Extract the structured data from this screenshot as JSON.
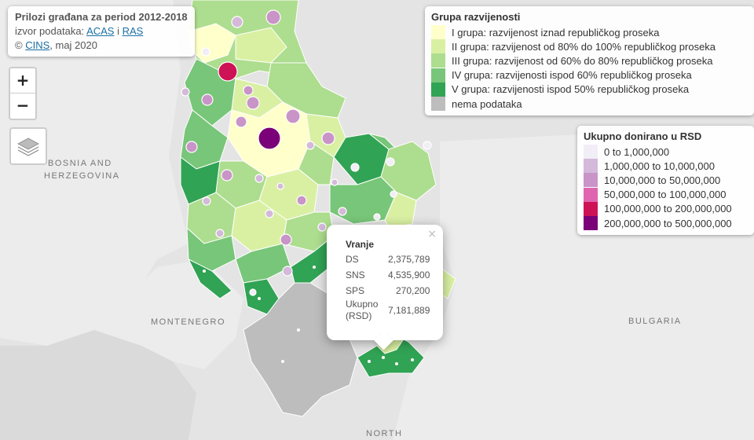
{
  "info": {
    "title": "Prilozi građana za period 2012-2018",
    "source_prefix": "izvor podataka: ",
    "source_link1": "ACAS",
    "source_sep": " i ",
    "source_link2": "RAS",
    "copy_prefix": "© ",
    "copy_link": "CINS",
    "copy_suffix": ", maj 2020"
  },
  "zoom": {
    "in_label": "+",
    "out_label": "−"
  },
  "legend_groups": {
    "title": "Grupa razvijenosti",
    "items": [
      {
        "label": "I grupa: razvijenost iznad republičkog proseka",
        "color": "#ffffcc"
      },
      {
        "label": "II grupa:  razvijenost od 80% do 100% republičkog proseka",
        "color": "#d9f0a3"
      },
      {
        "label": "III grupa: razvijenost od 60% do 80% republičkog proseka",
        "color": "#addd8e"
      },
      {
        "label": "IV grupa: razvijenosti ispod 60% republičkog proseka",
        "color": "#78c679"
      },
      {
        "label": "V grupa: razvijenosti ispod 50% republičkog proseka",
        "color": "#31a354"
      },
      {
        "label": "nema podataka",
        "color": "#bdbdbd"
      }
    ]
  },
  "legend_donations": {
    "title": "Ukupno donirano u RSD",
    "items": [
      {
        "label": "0 to 1,000,000",
        "color": "#f1eef6"
      },
      {
        "label": "1,000,000 to 10,000,000",
        "color": "#d4b9da"
      },
      {
        "label": "10,000,000 to 50,000,000",
        "color": "#c994c7"
      },
      {
        "label": "50,000,000 to 100,000,000",
        "color": "#df65b0"
      },
      {
        "label": "100,000,000 to 200,000,000",
        "color": "#ce1256"
      },
      {
        "label": "200,000,000 to 500,000,000",
        "color": "#7a0177"
      }
    ]
  },
  "popup": {
    "title": "Vranje",
    "rows": [
      {
        "label": "DS",
        "value": "2,375,789"
      },
      {
        "label": "SNS",
        "value": "4,535,900"
      },
      {
        "label": "SPS",
        "value": "270,200"
      },
      {
        "label": "Ukupno (RSD)",
        "value": "7,181,889"
      }
    ],
    "close": "×"
  },
  "countries": {
    "bosnia1": "BOSNIA AND",
    "bosnia2": "HERZEGOVINA",
    "montenegro": "MONTENEGRO",
    "bulgaria": "BULGARIA",
    "north": "NORTH"
  },
  "colors": {
    "sea_land": "#dcdcdc",
    "neighbor": "#e6e6e6",
    "border": "#ffffff"
  }
}
